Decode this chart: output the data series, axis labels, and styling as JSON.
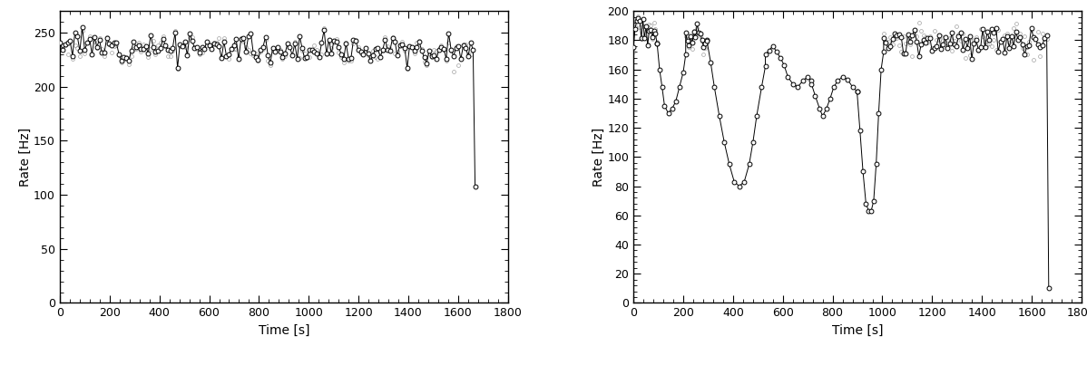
{
  "plot1": {
    "ylabel": "Rate [Hz]",
    "xlabel": "Time [s]",
    "xlim": [
      0,
      1800
    ],
    "ylim": [
      0,
      270
    ],
    "yticks": [
      0,
      50,
      100,
      150,
      200,
      250
    ],
    "xticks": [
      0,
      200,
      400,
      600,
      800,
      1000,
      1200,
      1400,
      1600,
      1800
    ],
    "x_minor": 40,
    "y_minor": 10,
    "stable_mean": 238,
    "stable_std": 6,
    "n_points": 170,
    "end_time": 1660,
    "drop_time": 1668,
    "drop_value": 108
  },
  "plot2": {
    "ylabel": "Rate [Hz]",
    "xlabel": "Time [s]",
    "xlim": [
      0,
      1800
    ],
    "ylim": [
      0,
      200
    ],
    "yticks": [
      0,
      20,
      40,
      60,
      80,
      100,
      120,
      140,
      160,
      180,
      200
    ],
    "xticks": [
      0,
      200,
      400,
      600,
      800,
      1000,
      1200,
      1400,
      1600,
      1800
    ],
    "x_minor": 40,
    "y_minor": 4,
    "stable_mean": 181,
    "stable_std": 4,
    "end_time": 1660,
    "drop_time": 1668,
    "drop_value": 10
  },
  "line_color": "#000000",
  "marker_color": "#000000",
  "marker_face": "white",
  "marker_size": 3.5,
  "line_width": 0.7,
  "background_color": "#ffffff"
}
